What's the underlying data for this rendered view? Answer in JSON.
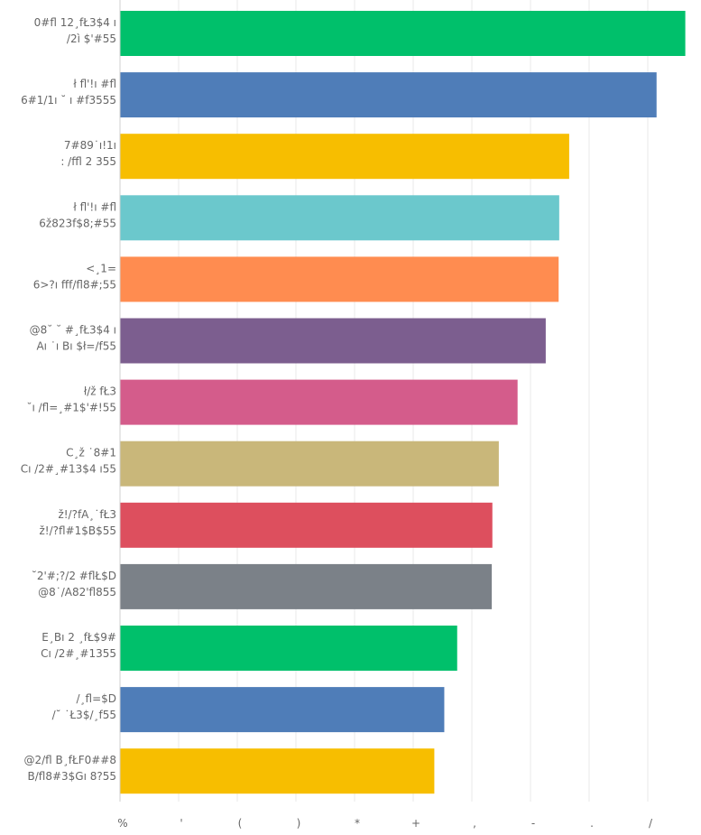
{
  "chart_data": {
    "type": "bar",
    "orientation": "horizontal",
    "title": "",
    "xlabel": "",
    "ylabel": "",
    "grid": "vertical",
    "legend": "none",
    "categories": [
      [
        "0#fl 12¸fŁ3$4 ı",
        "/2ì $'#55"
      ],
      [
        "ł fl'!ı #fl",
        "6#1/1ı ˘ ı #f3555"
      ],
      [
        "7#89˙ı!1ı",
        ": /ffl 2 355"
      ],
      [
        "ł fl'!ı #fl",
        "6ž823f$8;#55"
      ],
      [
        "<¸1=",
        "6>?ı fff/fl8#;55"
      ],
      [
        "@8˘ ˘ #¸fŁ3$4 ı",
        "Aı ˙ı Bı $ł=/f55"
      ],
      [
        "ł/ž fŁ3",
        "˘ı /fl=¸#1$'#!55"
      ],
      [
        "C¸ž ˙8#1",
        "Cı /2#¸#13$4 ı55"
      ],
      [
        "ž!/?fA¸˙fŁ3",
        "ž!/?fl#1$B$55"
      ],
      [
        "˘2'#;?/2 #flŁ$D",
        "@8˙/A82'fl855"
      ],
      [
        "E¸Bı 2 ¸fŁ$9#",
        "Cı /2#¸#1355"
      ],
      [
        "/¸fl=$D",
        "/˘ ˙Ł3$/¸f55"
      ],
      [
        "@2/fl B¸fŁF0##8",
        "B/fl8#3$Gı 8?55"
      ]
    ],
    "values": [
      9.64,
      9.15,
      7.66,
      7.49,
      7.48,
      7.26,
      6.78,
      6.46,
      6.35,
      6.34,
      5.75,
      5.53,
      5.36
    ],
    "colors": [
      "#00c06b",
      "#4f7db8",
      "#f7be00",
      "#6bc8cc",
      "#ff8c50",
      "#7c5e8f",
      "#d45c8b",
      "#c9b77a",
      "#dd4f5e",
      "#7b8188",
      "#00c06b",
      "#4f7db8",
      "#f7be00"
    ],
    "xlim": [
      0,
      10
    ],
    "xticks": [
      0,
      1,
      2,
      3,
      4,
      5,
      6,
      7,
      8,
      9,
      10
    ],
    "xtick_labels": [
      "%",
      "'",
      "(",
      ")",
      "*",
      "+",
      ",",
      "-",
      ".",
      "/",
      "'%"
    ],
    "gridline_color": "#e8e8e8",
    "axis_color": "#cfcfcf",
    "label_color": "#666666"
  }
}
